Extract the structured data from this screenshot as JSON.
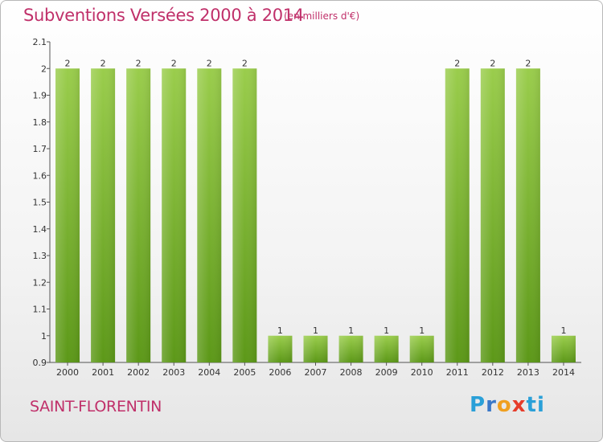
{
  "chart_data": {
    "type": "bar",
    "title": "Subventions Versées 2000 à 2014",
    "subtitle": "(en milliers d'€)",
    "xlabel": "",
    "ylabel": "",
    "categories": [
      "2000",
      "2001",
      "2002",
      "2003",
      "2004",
      "2005",
      "2006",
      "2007",
      "2008",
      "2009",
      "2010",
      "2011",
      "2012",
      "2013",
      "2014"
    ],
    "values": [
      2,
      2,
      2,
      2,
      2,
      2,
      1,
      1,
      1,
      1,
      1,
      2,
      2,
      2,
      1
    ],
    "ylim": [
      0.9,
      2.1
    ],
    "yticks": [
      "0.9",
      "1",
      "1.1",
      "1.2",
      "1.3",
      "1.4",
      "1.5",
      "1.6",
      "1.7",
      "1.8",
      "1.9",
      "2",
      "2.1"
    ],
    "grid": false,
    "colors": {
      "bar_top": "#9acd4c",
      "bar_bottom": "#5c9818",
      "title": "#c0306a"
    }
  },
  "commune": "SAINT-FLORENTIN",
  "logo": {
    "p": "P",
    "r": "r",
    "o": "o",
    "x": "x",
    "i": "i",
    "t": "ti"
  }
}
